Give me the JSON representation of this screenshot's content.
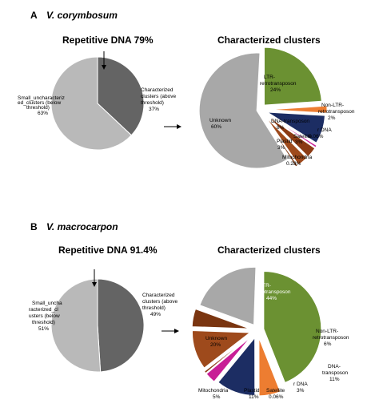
{
  "panels": [
    {
      "letter": "A",
      "species": "V. corymbosum",
      "repetitive_heading": "Repetitive DNA 79%",
      "clusters_heading": "Characterized clusters"
    },
    {
      "letter": "B",
      "species": "V. macrocarpon",
      "repetitive_heading": "Repetitive DNA 91.4%",
      "clusters_heading": "Characterized clusters"
    }
  ],
  "colors": {
    "light_gray": "#b9b9b9",
    "dark_gray": "#646464",
    "unknown_gray": "#a8a8a8",
    "ltr_green": "#6b9132",
    "non_ltr_orange": "#ed7d31",
    "dna_navy": "#1c2d63",
    "rdna_magenta": "#c81e96",
    "satellite_brown": "#8b3b14",
    "plastid_brown": "#9e4a1c",
    "mito_brown": "#7a3510"
  },
  "chart_data": [
    {
      "type": "pie",
      "title": "Repetitive DNA 79%",
      "slices": [
        {
          "label": "Characterized clusters (above threshold)",
          "value": 37,
          "display": "37%"
        },
        {
          "label": "Small_uncharacterized_clusters (below threshold)",
          "value": 63,
          "display": "63%"
        }
      ]
    },
    {
      "type": "pie",
      "title": "Characterized clusters",
      "slices": [
        {
          "label": "LTR-retrotransposon",
          "value": 24,
          "display": "24%"
        },
        {
          "label": "Non-LTR-retrotransposon",
          "value": 2,
          "display": "2%"
        },
        {
          "label": "DNA-transposon",
          "value": 8,
          "display": "8%"
        },
        {
          "label": "r DNA",
          "value": 0.06,
          "display": "0.06%"
        },
        {
          "label": "Satellite",
          "value": 3,
          "display": "3%"
        },
        {
          "label": "Plastid",
          "value": 3,
          "display": "3%"
        },
        {
          "label": "Mitochondria",
          "value": 0.28,
          "display": "0.28%"
        },
        {
          "label": "Unknown",
          "value": 60,
          "display": "60%"
        }
      ]
    },
    {
      "type": "pie",
      "title": "Repetitive DNA 91.4%",
      "slices": [
        {
          "label": "Characterized clusters (above threshold)",
          "value": 49,
          "display": "49%"
        },
        {
          "label": "Small_uncharacterized_clusters (below threshold)",
          "value": 51,
          "display": "51%"
        }
      ]
    },
    {
      "type": "pie",
      "title": "Characterized clusters",
      "slices": [
        {
          "label": "LTR-retrotransposon",
          "value": 44,
          "display": "44%"
        },
        {
          "label": "Non-LTR-retrotransposon",
          "value": 6,
          "display": "6%"
        },
        {
          "label": "DNA-transposon",
          "value": 11,
          "display": "11%"
        },
        {
          "label": "r DNA",
          "value": 3,
          "display": "3%"
        },
        {
          "label": "Satellite",
          "value": 0.06,
          "display": "0.06%"
        },
        {
          "label": "Plastid",
          "value": 11,
          "display": "11%"
        },
        {
          "label": "Mitochondria",
          "value": 5,
          "display": "5%"
        },
        {
          "label": "Unknown",
          "value": 20,
          "display": "20%"
        }
      ]
    }
  ]
}
